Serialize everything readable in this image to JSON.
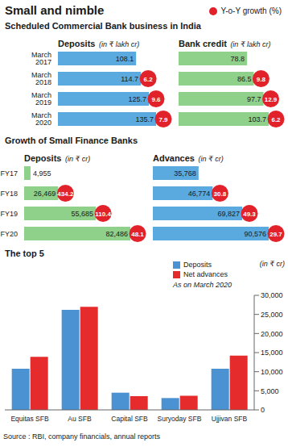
{
  "title": "Small and nimble",
  "growth_label": "Y-o-Y growth (%)",
  "growth_color": "#e2222a",
  "source": "Source : RBI, company financials, annual reports",
  "chart_data": [
    {
      "type": "bar",
      "orientation": "horizontal",
      "section": "Scheduled Commercial Bank business in India",
      "title": "Deposits",
      "unit": "(in ₹ lakh cr)",
      "categories": [
        "March 2017",
        "March 2018",
        "March 2019",
        "March 2020"
      ],
      "values": [
        108.1,
        114.7,
        125.7,
        135.7
      ],
      "growth": [
        null,
        6.2,
        9.6,
        7.9
      ],
      "color": "#5aaae0",
      "data_labels": true,
      "tick_labels": "y"
    },
    {
      "type": "bar",
      "orientation": "horizontal",
      "title": "Bank credit",
      "unit": "(in ₹ lakh cr)",
      "categories": [
        null,
        null,
        null,
        null
      ],
      "values": [
        78.8,
        86.5,
        97.7,
        103.7
      ],
      "growth": [
        null,
        9.8,
        12.9,
        6.2
      ],
      "color": "#8fd08a",
      "data_labels": true,
      "tick_labels": false
    },
    {
      "type": "bar",
      "orientation": "horizontal",
      "section": "Growth of Small Finance Banks",
      "title": "Deposits",
      "unit": "(in ₹ cr)",
      "categories": [
        "FY17",
        "FY18",
        "FY19",
        "FY20"
      ],
      "values": [
        4955,
        26469,
        55685,
        82486
      ],
      "value_labels": [
        "4,955",
        "26,469",
        "55,685",
        "82,486"
      ],
      "growth": [
        null,
        434.2,
        110.4,
        48.1
      ],
      "color": "#8fd08a",
      "data_labels": true,
      "tick_labels": "y"
    },
    {
      "type": "bar",
      "orientation": "horizontal",
      "title": "Advances",
      "unit": "(in ₹ cr)",
      "categories": [
        null,
        null,
        null,
        null
      ],
      "values": [
        35768,
        46774,
        69827,
        90576
      ],
      "value_labels": [
        "35,768",
        "46,774",
        "69,827",
        "90,576"
      ],
      "growth": [
        null,
        30.8,
        49.3,
        29.7
      ],
      "color": "#5aaae0",
      "data_labels": true,
      "tick_labels": false
    },
    {
      "type": "bar",
      "section": "The top 5",
      "unit": "(in ₹ cr)",
      "note": "As on March 2020",
      "categories": [
        "Equitas SFB",
        "Au SFB",
        "Capital SFB",
        "Suryoday SFB",
        "Ujjivan SFB"
      ],
      "series": [
        {
          "name": "Deposits",
          "color": "#4a92d2",
          "values": [
            10800,
            26200,
            4500,
            3100,
            10800
          ]
        },
        {
          "name": "Net advances",
          "color": "#e52b2b",
          "values": [
            13900,
            27000,
            3600,
            3700,
            14200
          ]
        }
      ],
      "ylim": [
        0,
        30000
      ],
      "yticks": [
        0,
        {
          "value": 5000,
          "label": "5,000"
        },
        {
          "value": 10000,
          "label": "10,000"
        },
        {
          "value": 15000,
          "label": "15,000"
        },
        {
          "value": 20000,
          "label": "20,000"
        },
        {
          "value": 25000,
          "label": "25,000"
        },
        {
          "value": 30000,
          "label": "30,000"
        }
      ],
      "grid": false,
      "legend": "top right"
    }
  ]
}
